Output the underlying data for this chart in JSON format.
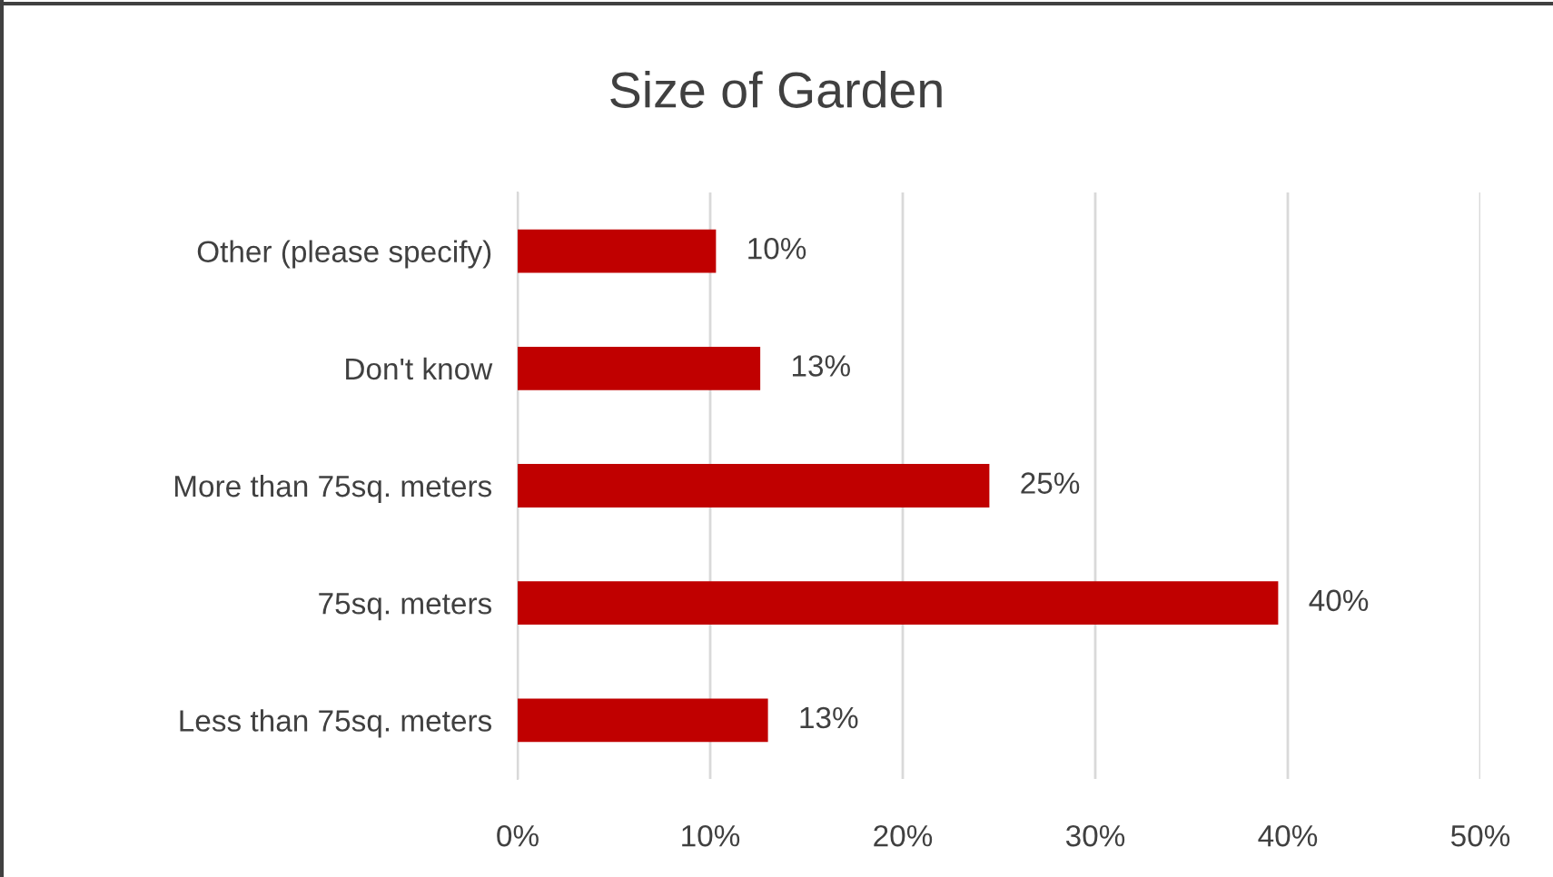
{
  "chart_data": {
    "type": "bar",
    "orientation": "horizontal",
    "title": "Size of Garden",
    "categories": [
      "Other (please specify)",
      "Don't know",
      "More than 75sq. meters",
      "75sq. meters",
      "Less than 75sq. meters"
    ],
    "values": [
      10.3,
      12.6,
      24.5,
      39.5,
      13.0
    ],
    "value_labels": [
      "10%",
      "13%",
      "25%",
      "40%",
      "13%"
    ],
    "color": "#c00000",
    "xlim": [
      0,
      50
    ],
    "xticks": [
      {
        "value": 0,
        "label": "0%"
      },
      {
        "value": 10,
        "label": "10%"
      },
      {
        "value": 20,
        "label": "20%"
      },
      {
        "value": 30,
        "label": "30%"
      },
      {
        "value": 40,
        "label": "40%"
      },
      {
        "value": 50,
        "label": "50%"
      }
    ],
    "grid": "x",
    "legend": false
  }
}
